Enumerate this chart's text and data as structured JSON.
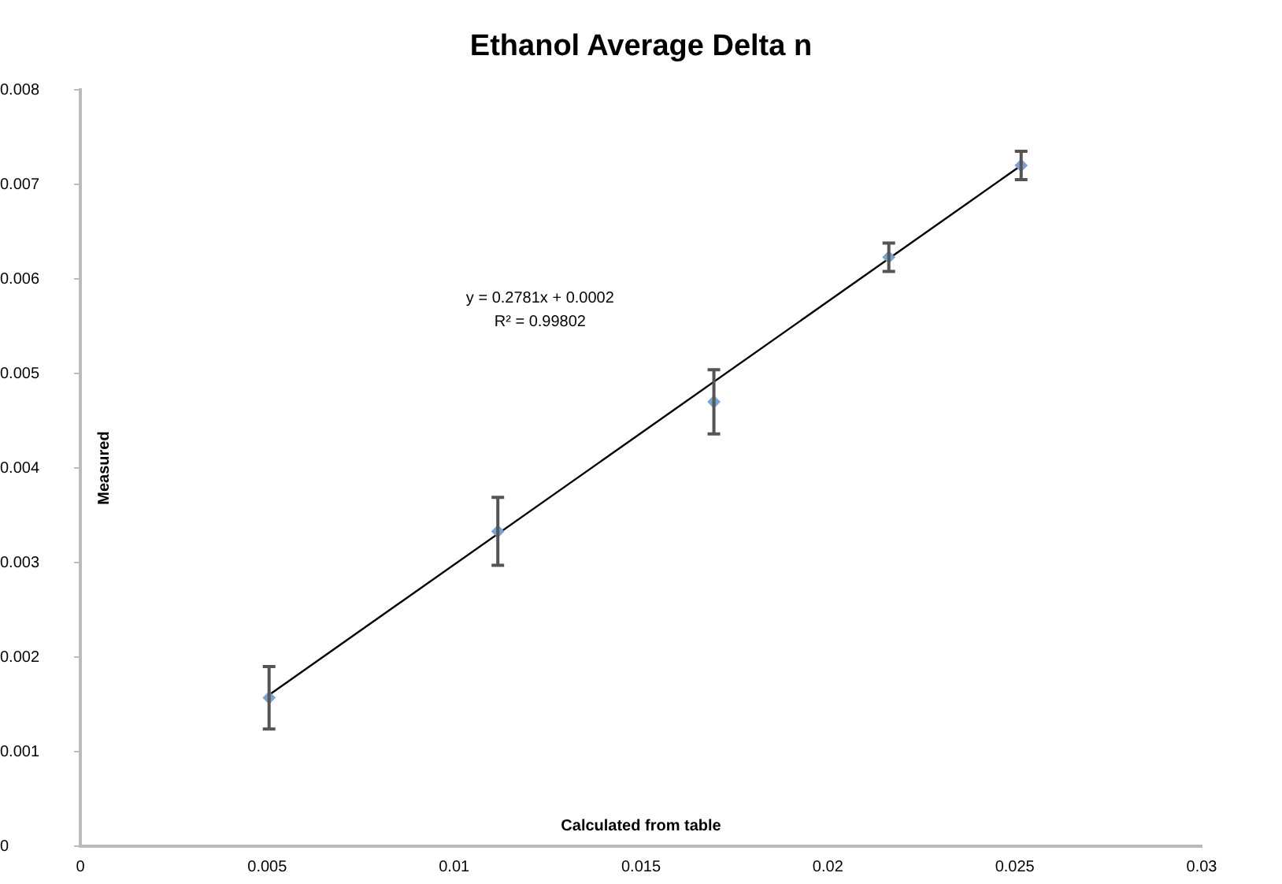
{
  "chart_data": {
    "type": "scatter",
    "title": "Ethanol Average Delta n",
    "xlabel": "Calculated from table",
    "ylabel": "Measured",
    "annotations": [
      "y = 0.2781x + 0.0002",
      "R² = 0.99802"
    ],
    "series": [
      {
        "color": "#7ba3d0",
        "x": [
          0.00505,
          0.01117,
          0.01695,
          0.02163,
          0.02517
        ],
        "values": [
          0.00157,
          0.00333,
          0.0047,
          0.00623,
          0.0072
        ],
        "errors": [
          0.00033,
          0.00036,
          0.00034,
          0.00015,
          0.00015
        ],
        "marker": "diamond"
      },
      {
        "type": "line",
        "color": "#000000",
        "x": [
          0.00505,
          0.02517
        ],
        "values": [
          0.0016,
          0.0072
        ],
        "marker": "none"
      }
    ],
    "xlim": [
      0,
      0.03
    ],
    "xticks": [
      0,
      0.005,
      0.01,
      0.015,
      0.02,
      0.025,
      0.03
    ],
    "ylim": [
      0,
      0.008
    ],
    "yticks": [
      0,
      0.001,
      0.002,
      0.003,
      0.004,
      0.005,
      0.006,
      0.007,
      0.008
    ],
    "grid": false,
    "legend": false
  }
}
